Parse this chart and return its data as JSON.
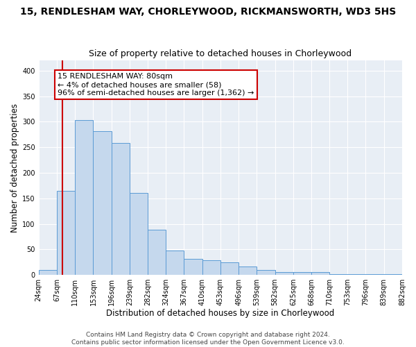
{
  "title": "15, RENDLESHAM WAY, CHORLEYWOOD, RICKMANSWORTH, WD3 5HS",
  "subtitle": "Size of property relative to detached houses in Chorleywood",
  "xlabel": "Distribution of detached houses by size in Chorleywood",
  "ylabel": "Number of detached properties",
  "bar_color": "#c5d8ed",
  "bar_edge_color": "#5b9bd5",
  "marker_line_color": "#cc0000",
  "marker_value": 80,
  "annotation_line1": "15 RENDLESHAM WAY: 80sqm",
  "annotation_line2": "← 4% of detached houses are smaller (58)",
  "annotation_line3": "96% of semi-detached houses are larger (1,362) →",
  "annotation_box_color": "#ffffff",
  "annotation_box_edge_color": "#cc0000",
  "bin_edges": [
    24,
    67,
    110,
    153,
    196,
    239,
    282,
    324,
    367,
    410,
    453,
    496,
    539,
    582,
    625,
    668,
    710,
    753,
    796,
    839,
    882
  ],
  "bar_heights": [
    10,
    165,
    303,
    282,
    258,
    160,
    88,
    48,
    31,
    29,
    24,
    16,
    9,
    5,
    5,
    5,
    2,
    2,
    1,
    1
  ],
  "ylim": [
    0,
    420
  ],
  "yticks": [
    0,
    50,
    100,
    150,
    200,
    250,
    300,
    350,
    400
  ],
  "background_color": "#ffffff",
  "grid_color": "#ffffff",
  "axes_bg_color": "#e8eef5",
  "footer_text": "Contains HM Land Registry data © Crown copyright and database right 2024.\nContains public sector information licensed under the Open Government Licence v3.0.",
  "title_fontsize": 10,
  "subtitle_fontsize": 9,
  "xlabel_fontsize": 8.5,
  "ylabel_fontsize": 8.5,
  "tick_fontsize": 7,
  "annot_fontsize": 8,
  "footer_fontsize": 6.5
}
